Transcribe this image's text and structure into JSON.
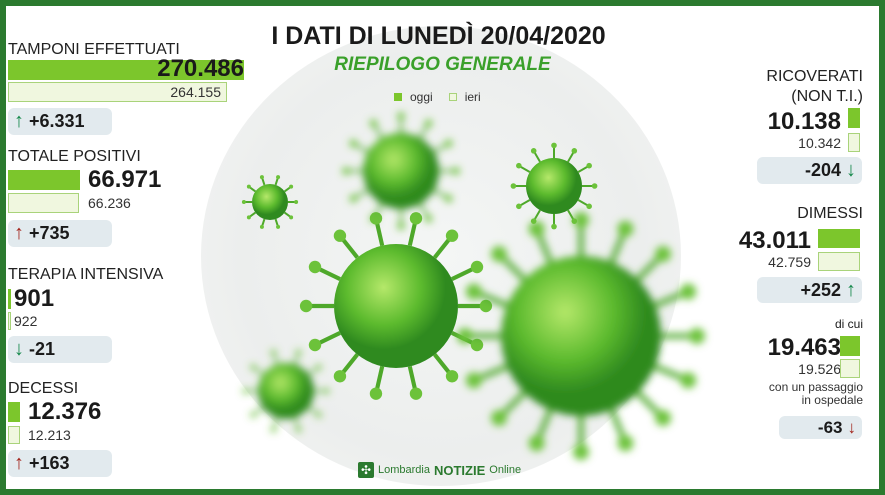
{
  "title": "I DATI DI LUNEDÌ 20/04/2020",
  "subtitle": "RIEPILOGO GENERALE",
  "legend": {
    "today": "oggi",
    "yesterday": "ieri"
  },
  "colors": {
    "frame": "#2b7a2f",
    "today": "#7cc62c",
    "yesterday": "#f0f7df",
    "up_bad": "#a3241b",
    "good": "#14884a",
    "subtitle": "#3aa02a"
  },
  "left": {
    "tamponi": {
      "label": "TAMPONI EFFETTUATI",
      "today": "270.486",
      "yesterday": "264.155",
      "delta": "+6.331",
      "arrow": "up-green"
    },
    "positivi": {
      "label": "TOTALE POSITIVI",
      "today": "66.971",
      "yesterday": "66.236",
      "delta": "+735",
      "arrow": "up-red"
    },
    "terapia": {
      "label": "TERAPIA INTENSIVA",
      "today": "901",
      "yesterday": "922",
      "delta": "-21",
      "arrow": "down-green"
    },
    "decessi": {
      "label": "DECESSI",
      "today": "12.376",
      "yesterday": "12.213",
      "delta": "+163",
      "arrow": "up-red"
    }
  },
  "right": {
    "ricoverati": {
      "label1": "RICOVERATI",
      "label2": "(NON T.I.)",
      "today": "10.138",
      "yesterday": "10.342",
      "delta": "-204",
      "arrow": "down-green"
    },
    "dimessi": {
      "label": "DIMESSI",
      "today": "43.011",
      "yesterday": "42.759",
      "delta": "+252",
      "arrow": "up-green"
    },
    "dicui": {
      "label": "di cui",
      "today": "19.463",
      "yesterday": "19.526",
      "note1": "con un passaggio",
      "note2": "in ospedale",
      "delta": "-63",
      "arrow": "down-red"
    }
  },
  "footer": {
    "logo_text_1": "Lombardia",
    "logo_text_2": "NOTIZIE",
    "logo_text_3": "Online"
  }
}
